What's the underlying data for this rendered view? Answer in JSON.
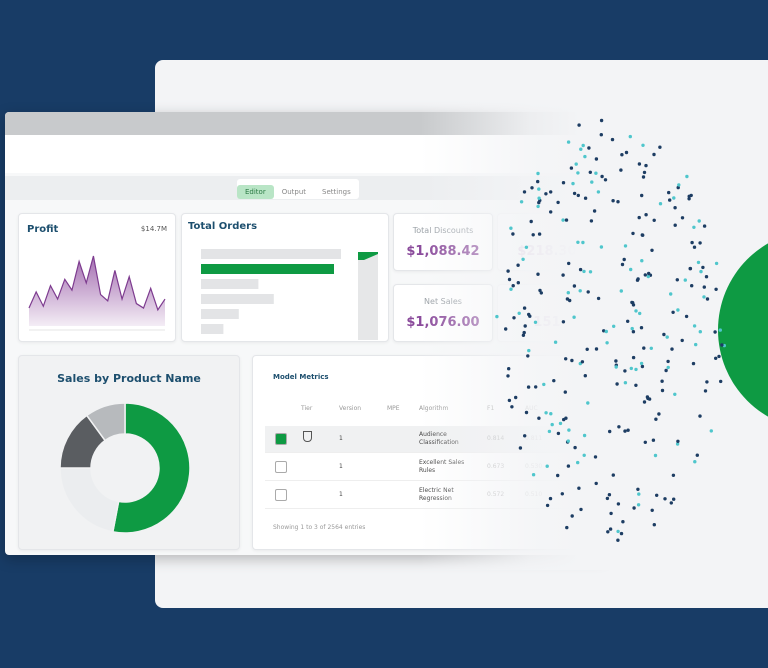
{
  "tabs": [
    "Editor",
    "Output",
    "Settings"
  ],
  "profit": {
    "title": "Profit",
    "total": "$14.7M",
    "values": [
      20,
      38,
      22,
      45,
      30,
      52,
      40,
      72,
      48,
      78,
      35,
      28,
      62,
      30,
      55,
      25,
      20,
      42,
      18,
      30
    ]
  },
  "total_orders": {
    "title": "Total Orders",
    "values": [
      100,
      95,
      41,
      52,
      27,
      16
    ],
    "highlight": 1
  },
  "kpis": [
    {
      "label": "Total Discounts",
      "value": "$1,088.42"
    },
    {
      "value": "$218.30"
    },
    {
      "label": "Net Sales",
      "value": "$1,076.00"
    },
    {
      "value": "151"
    }
  ],
  "sales_by_product": {
    "title": "Sales by Product Name",
    "values": [
      53,
      22,
      15,
      10
    ],
    "colors": [
      "#0e9a43",
      "#ebedef",
      "#5a5d61",
      "#b7babd"
    ]
  },
  "model_metrics": {
    "title": "Model Metrics",
    "columns": [
      "Tier",
      "Version",
      "MPE",
      "Algorithm",
      "F1",
      "AUC"
    ],
    "rows": [
      {
        "checked": true,
        "version": "1",
        "algorithm": "Audience Classification",
        "f1": "0.814",
        "auc": "0.811"
      },
      {
        "checked": false,
        "version": "1",
        "algorithm": "Excellent Sales Rules",
        "f1": "0.673",
        "auc": "0.530"
      },
      {
        "checked": false,
        "version": "1",
        "algorithm": "Electric Net Regression",
        "f1": "0.572",
        "auc": "0.510"
      }
    ],
    "footer": "Showing 1 to 3 of 2564 entries"
  }
}
